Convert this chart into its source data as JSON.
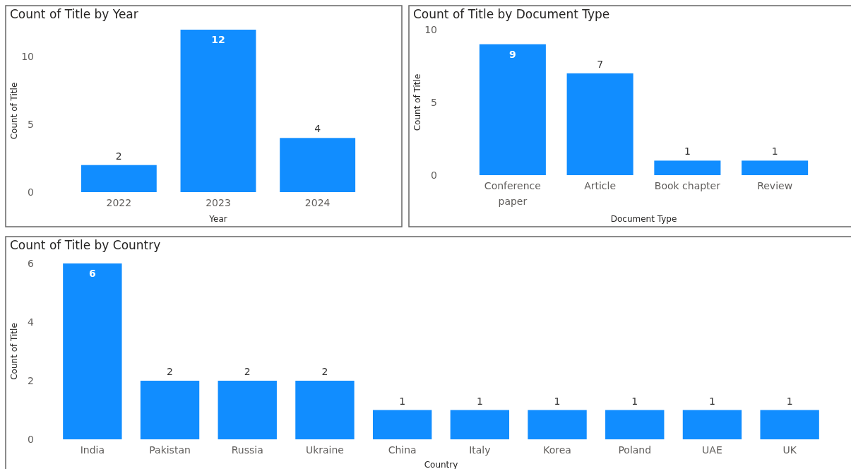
{
  "chart_data": [
    {
      "type": "bar",
      "title": "Count of Title by Year",
      "xlabel": "Year",
      "ylabel": "Count of Title",
      "categories": [
        "2022",
        "2023",
        "2024"
      ],
      "values": [
        2,
        12,
        4
      ],
      "color": "#118dff",
      "ylim": [
        0,
        12
      ],
      "yticks": [
        0,
        5,
        10
      ],
      "data_labels": true,
      "grid": false
    },
    {
      "type": "bar",
      "title": "Count of Title by Document Type",
      "xlabel": "Document Type",
      "ylabel": "Count of Title",
      "categories": [
        "Conference paper",
        "Article",
        "Book chapter",
        "Review"
      ],
      "values": [
        9,
        7,
        1,
        1
      ],
      "color": "#118dff",
      "ylim": [
        0,
        10
      ],
      "yticks": [
        0,
        5,
        10
      ],
      "data_labels": true,
      "grid": false
    },
    {
      "type": "bar",
      "title": "Count of Title by Country",
      "xlabel": "Country",
      "ylabel": "Count of Title",
      "categories": [
        "India",
        "Pakistan",
        "Russia",
        "Ukraine",
        "China",
        "Italy",
        "Korea",
        "Poland",
        "UAE",
        "UK"
      ],
      "values": [
        6,
        2,
        2,
        2,
        1,
        1,
        1,
        1,
        1,
        1
      ],
      "color": "#118dff",
      "ylim": [
        0,
        6
      ],
      "yticks": [
        0,
        2,
        4,
        6
      ],
      "data_labels": true,
      "grid": false
    }
  ]
}
